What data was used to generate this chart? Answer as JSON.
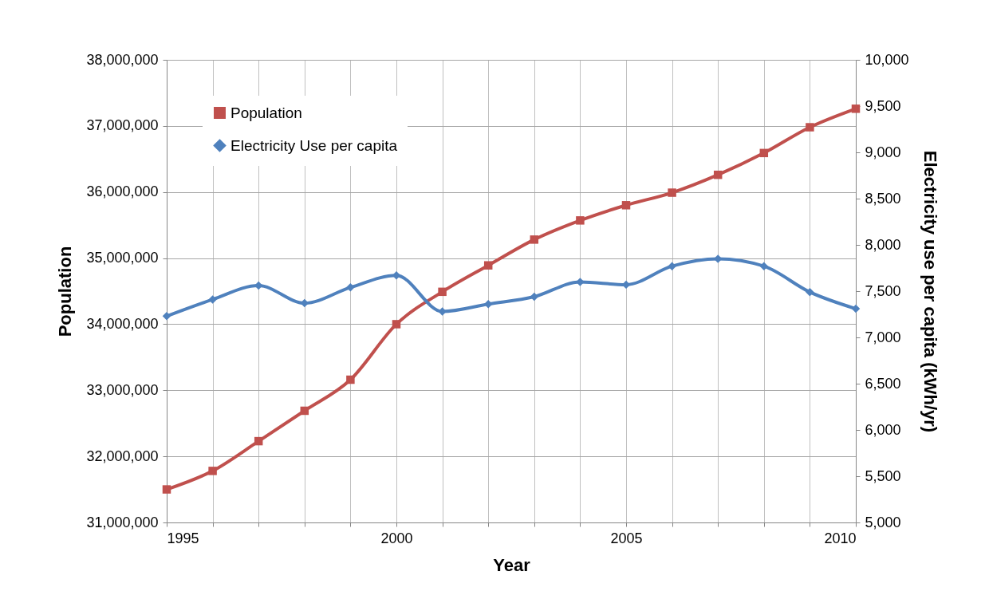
{
  "chart_data": {
    "type": "line",
    "xlabel": "Year",
    "ylabel": "Population",
    "y2label": "Electricity use per capita (kWh/yr)",
    "x": [
      1995,
      1996,
      1997,
      1998,
      1999,
      2000,
      2001,
      2002,
      2003,
      2004,
      2005,
      2006,
      2007,
      2008,
      2009,
      2010
    ],
    "series": [
      {
        "name": "Population",
        "color": "#c0504d",
        "marker": "square",
        "values": [
          31500000,
          31780000,
          32230000,
          32690000,
          33160000,
          34000000,
          34490000,
          34890000,
          35280000,
          35570000,
          35800000,
          35990000,
          36260000,
          36590000,
          36980000,
          37260000
        ]
      },
      {
        "name": "Electricity Use per capita",
        "color": "#4f81bd",
        "marker": "diamond",
        "axis": "y2",
        "values": [
          7230,
          7410,
          7560,
          7370,
          7540,
          7670,
          7280,
          7360,
          7440,
          7600,
          7570,
          7770,
          7850,
          7770,
          7490,
          7310
        ]
      }
    ],
    "xlim": [
      1995,
      2010
    ],
    "xticks": [
      1995,
      {
        "value": 1996,
        "label": null
      },
      {
        "value": 1997,
        "label": null
      },
      {
        "value": 1998,
        "label": null
      },
      {
        "value": 1999,
        "label": null
      },
      2000,
      {
        "value": 2001,
        "label": null
      },
      {
        "value": 2002,
        "label": null
      },
      {
        "value": 2003,
        "label": null
      },
      {
        "value": 2004,
        "label": null
      },
      2005,
      {
        "value": 2006,
        "label": null
      },
      {
        "value": 2007,
        "label": null
      },
      {
        "value": 2008,
        "label": null
      },
      {
        "value": 2009,
        "label": null
      },
      2010
    ],
    "ylim": [
      31000000,
      38000000
    ],
    "yticks": [
      {
        "value": 31000000,
        "label": "31,000,000"
      },
      {
        "value": 32000000,
        "label": "32,000,000"
      },
      {
        "value": 33000000,
        "label": "33,000,000"
      },
      {
        "value": 34000000,
        "label": "34,000,000"
      },
      {
        "value": 35000000,
        "label": "35,000,000"
      },
      {
        "value": 36000000,
        "label": "36,000,000"
      },
      {
        "value": 37000000,
        "label": "37,000,000"
      },
      {
        "value": 38000000,
        "label": "38,000,000"
      }
    ],
    "y2lim": [
      5000,
      10000
    ],
    "y2ticks": [
      {
        "value": 5000,
        "label": "5,000"
      },
      {
        "value": 5500,
        "label": "5,500"
      },
      {
        "value": 6000,
        "label": "6,000"
      },
      {
        "value": 6500,
        "label": "6,500"
      },
      {
        "value": 7000,
        "label": "7,000"
      },
      {
        "value": 7500,
        "label": "7,500"
      },
      {
        "value": 8000,
        "label": "8,000"
      },
      {
        "value": 8500,
        "label": "8,500"
      },
      {
        "value": 9000,
        "label": "9,000"
      },
      {
        "value": 9500,
        "label": "9,500"
      },
      {
        "value": 10000,
        "label": "10,000"
      }
    ],
    "grid": true,
    "legend": "top left"
  }
}
